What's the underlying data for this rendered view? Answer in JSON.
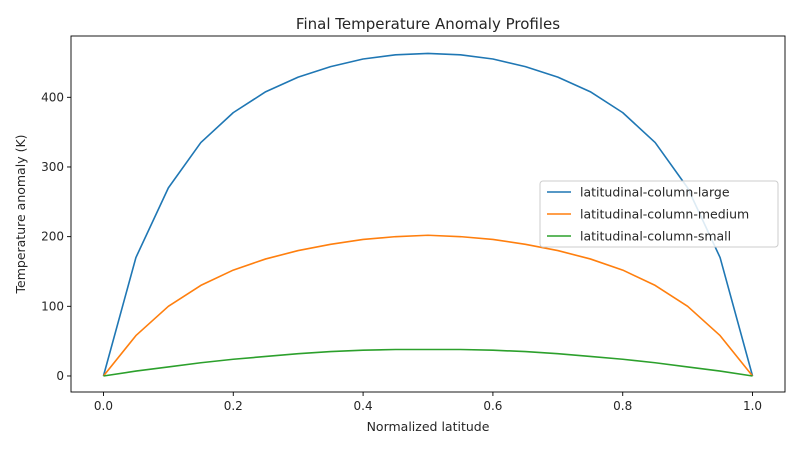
{
  "chart_data": {
    "type": "line",
    "title": "Final Temperature Anomaly Profiles",
    "xlabel": "Normalized latitude",
    "ylabel": "Temperature anomaly (K)",
    "xlim": [
      -0.05,
      1.05
    ],
    "ylim": [
      -23,
      488
    ],
    "xticks": [
      0.0,
      0.2,
      0.4,
      0.6,
      0.8,
      1.0
    ],
    "xtick_labels": [
      "0.0",
      "0.2",
      "0.4",
      "0.6",
      "0.8",
      "1.0"
    ],
    "yticks": [
      0,
      100,
      200,
      300,
      400
    ],
    "ytick_labels": [
      "0",
      "100",
      "200",
      "300",
      "400"
    ],
    "grid": false,
    "legend_position": "center-right",
    "x": [
      0.0,
      0.05,
      0.1,
      0.15,
      0.2,
      0.25,
      0.3,
      0.35,
      0.4,
      0.45,
      0.5,
      0.55,
      0.6,
      0.65,
      0.7,
      0.75,
      0.8,
      0.85,
      0.9,
      0.95,
      1.0
    ],
    "series": [
      {
        "name": "latitudinal-column-large",
        "color": "#1f77b4",
        "values": [
          0,
          170,
          270,
          335,
          378,
          408,
          429,
          444,
          455,
          461,
          463,
          461,
          455,
          444,
          429,
          408,
          378,
          335,
          270,
          170,
          0
        ]
      },
      {
        "name": "latitudinal-column-medium",
        "color": "#ff7f0e",
        "values": [
          0,
          58,
          100,
          130,
          152,
          168,
          180,
          189,
          196,
          200,
          202,
          200,
          196,
          189,
          180,
          168,
          152,
          130,
          100,
          58,
          0
        ]
      },
      {
        "name": "latitudinal-column-small",
        "color": "#2ca02c",
        "values": [
          0,
          7,
          13,
          19,
          24,
          28,
          32,
          35,
          37,
          38,
          38,
          38,
          37,
          35,
          32,
          28,
          24,
          19,
          13,
          7,
          0
        ]
      }
    ]
  }
}
